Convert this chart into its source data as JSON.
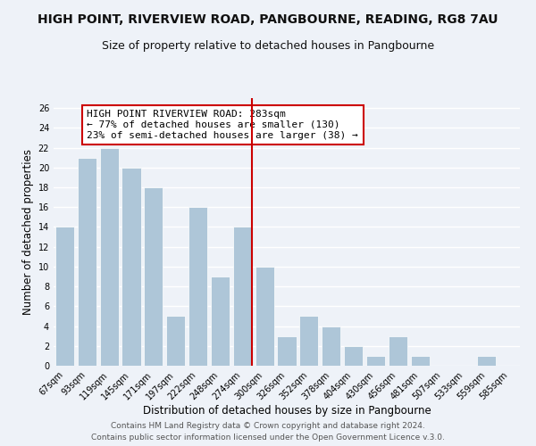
{
  "title": "HIGH POINT, RIVERVIEW ROAD, PANGBOURNE, READING, RG8 7AU",
  "subtitle": "Size of property relative to detached houses in Pangbourne",
  "xlabel": "Distribution of detached houses by size in Pangbourne",
  "ylabel": "Number of detached properties",
  "bar_labels": [
    "67sqm",
    "93sqm",
    "119sqm",
    "145sqm",
    "171sqm",
    "197sqm",
    "222sqm",
    "248sqm",
    "274sqm",
    "300sqm",
    "326sqm",
    "352sqm",
    "378sqm",
    "404sqm",
    "430sqm",
    "456sqm",
    "481sqm",
    "507sqm",
    "533sqm",
    "559sqm",
    "585sqm"
  ],
  "bar_values": [
    14,
    21,
    22,
    20,
    18,
    5,
    16,
    9,
    14,
    10,
    3,
    5,
    4,
    2,
    1,
    3,
    1,
    0,
    0,
    1,
    0
  ],
  "bar_color": "#aec6d8",
  "bar_edge_color": "#ffffff",
  "vline_bar_index": 8,
  "vline_color": "#cc0000",
  "annotation_text": "HIGH POINT RIVERVIEW ROAD: 283sqm\n← 77% of detached houses are smaller (130)\n23% of semi-detached houses are larger (38) →",
  "annotation_box_edgecolor": "#cc0000",
  "annotation_box_facecolor": "#ffffff",
  "ylim": [
    0,
    27
  ],
  "yticks": [
    0,
    2,
    4,
    6,
    8,
    10,
    12,
    14,
    16,
    18,
    20,
    22,
    24,
    26
  ],
  "footer1": "Contains HM Land Registry data © Crown copyright and database right 2024.",
  "footer2": "Contains public sector information licensed under the Open Government Licence v.3.0.",
  "background_color": "#eef2f8",
  "grid_color": "#ffffff",
  "title_fontsize": 10,
  "subtitle_fontsize": 9,
  "axis_label_fontsize": 8.5,
  "tick_fontsize": 7,
  "annotation_fontsize": 8,
  "footer_fontsize": 6.5
}
